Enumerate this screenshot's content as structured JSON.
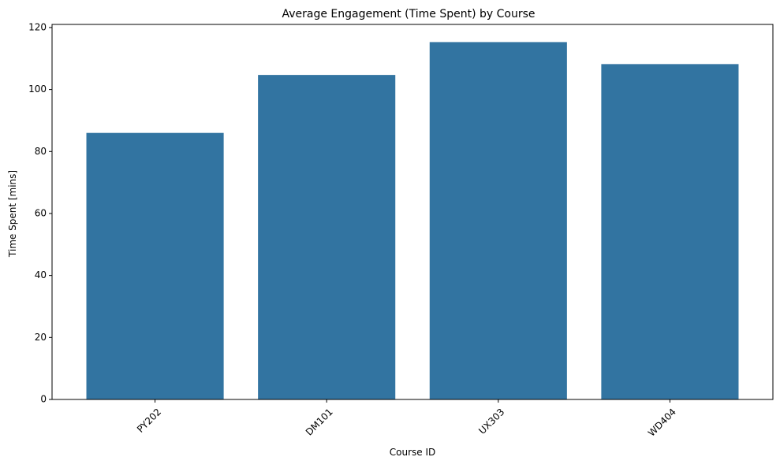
{
  "chart_data": {
    "type": "bar",
    "title": "Average Engagement (Time Spent) by Course",
    "xlabel": "Course ID",
    "ylabel": "Time Spent [mins]",
    "categories": [
      "PY202",
      "DM101",
      "UX303",
      "WD404"
    ],
    "values": [
      86.0,
      104.7,
      115.3,
      108.2
    ],
    "ylim": [
      0,
      121
    ],
    "yticks": [
      0,
      20,
      40,
      60,
      80,
      100,
      120
    ],
    "ytick_labels": [
      "0",
      "20",
      "40",
      "60",
      "80",
      "100",
      "120"
    ],
    "xtick_rotation_deg": 45,
    "grid": false,
    "legend": "none",
    "bar_color": "#3274a1"
  }
}
